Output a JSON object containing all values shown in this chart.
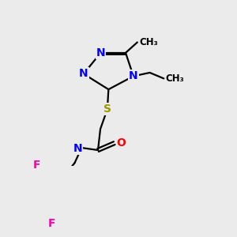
{
  "background_color": "#ebebeb",
  "atom_colors": {
    "N": "#0000ff",
    "O": "#ff0000",
    "S": "#999900",
    "F": "#ff00aa",
    "H": "#5a8a8a",
    "C": "#000000"
  },
  "bond_color": "#000000",
  "bond_width": 1.6,
  "font_size_atom": 10,
  "title": ""
}
